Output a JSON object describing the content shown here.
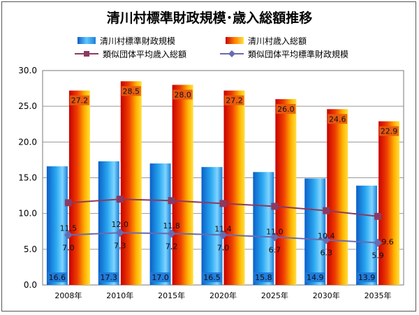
{
  "chart_data": {
    "type": "bar",
    "title": "清川村標準財政規模･歳入総額推移",
    "categories": [
      "2008年",
      "2010年",
      "2015年",
      "2020年",
      "2025年",
      "2030年",
      "2035年"
    ],
    "ylim": [
      0,
      30
    ],
    "yticks": [
      "0.0",
      "5.0",
      "10.0",
      "15.0",
      "20.0",
      "25.0",
      "30.0"
    ],
    "grid": true,
    "legend_position": "top",
    "series": [
      {
        "name": "清川村標準財政規模",
        "kind": "bar",
        "color": "#1e90e8",
        "values": [
          16.6,
          17.3,
          17.0,
          16.5,
          15.8,
          14.9,
          13.9
        ],
        "labels": [
          "16.6",
          "17.3",
          "17.0",
          "16.5",
          "15.8",
          "14.9",
          "13.9"
        ]
      },
      {
        "name": "清川村歳入総額",
        "kind": "bar",
        "color": "#e83a00",
        "values": [
          27.2,
          28.5,
          28.0,
          27.2,
          26.0,
          24.6,
          22.9
        ],
        "labels": [
          "27.2",
          "28.5",
          "28.0",
          "27.2",
          "26.0",
          "24.6",
          "22.9"
        ]
      },
      {
        "name": "類似団体平均歳入総額",
        "kind": "line",
        "marker": "square",
        "color": "#8b3a62",
        "values": [
          11.5,
          12.0,
          11.8,
          11.4,
          11.0,
          10.4,
          9.6
        ],
        "labels": [
          "11.5",
          "12.0",
          "11.8",
          "11.4",
          "11.0",
          "10.4",
          "9.6"
        ]
      },
      {
        "name": "類似団体平均標準財政規模",
        "kind": "line",
        "marker": "diamond",
        "color": "#6a6ab0",
        "values": [
          7.0,
          7.3,
          7.2,
          7.0,
          6.7,
          6.3,
          5.9
        ],
        "labels": [
          "7.0",
          "7.3",
          "7.2",
          "7.0",
          "6.7",
          "6.3",
          "5.9"
        ]
      }
    ]
  }
}
